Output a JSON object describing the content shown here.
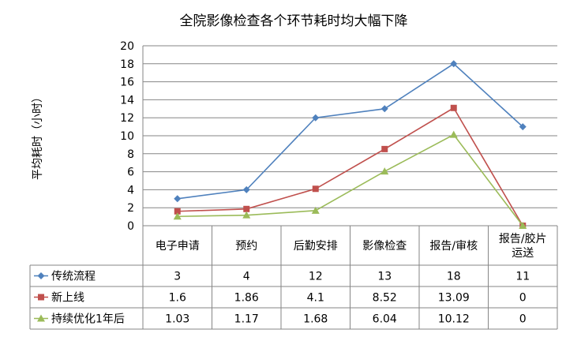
{
  "chart_data": {
    "type": "line",
    "title": "全院影像检查各个环节耗时均大幅下降",
    "xlabel": "",
    "ylabel": "平均耗时（小时）",
    "ylim": [
      0,
      20
    ],
    "yticks": [
      0,
      2,
      4,
      6,
      8,
      10,
      12,
      14,
      16,
      18,
      20
    ],
    "grid": true,
    "legend": "data-table-left",
    "categories": [
      [
        "电子申请"
      ],
      [
        "预约"
      ],
      [
        "后勤安排"
      ],
      [
        "影像检查"
      ],
      [
        "报告/审核"
      ],
      [
        "报告/胶片",
        "运送"
      ]
    ],
    "series": [
      {
        "name": "传统流程",
        "color": "#4F81BD",
        "marker": "diamond",
        "values": [
          3,
          4,
          12,
          13,
          18,
          11
        ],
        "labels": [
          "3",
          "4",
          "12",
          "13",
          "18",
          "11"
        ]
      },
      {
        "name": "新上线",
        "color": "#C0504D",
        "marker": "square",
        "values": [
          1.6,
          1.86,
          4.1,
          8.52,
          13.09,
          0
        ],
        "labels": [
          "1.6",
          "1.86",
          "4.1",
          "8.52",
          "13.09",
          "0"
        ]
      },
      {
        "name": "持续优化1年后",
        "color": "#9BBB59",
        "marker": "triangle",
        "values": [
          1.03,
          1.17,
          1.68,
          6.04,
          10.12,
          0
        ],
        "labels": [
          "1.03",
          "1.17",
          "1.68",
          "6.04",
          "10.12",
          "0"
        ]
      }
    ]
  }
}
